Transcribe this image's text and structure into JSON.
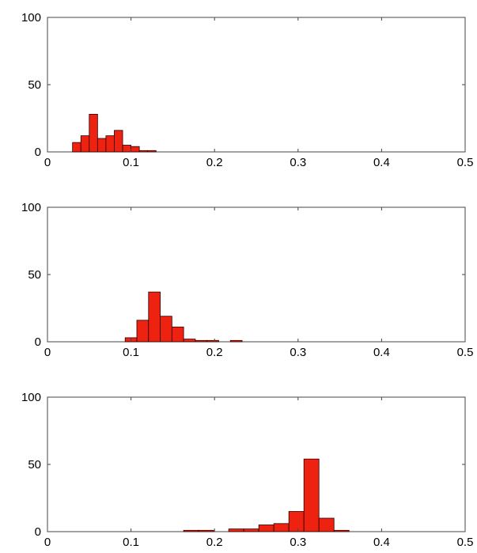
{
  "chart_data": [
    {
      "type": "bar",
      "title": "",
      "xlabel": "",
      "ylabel": "",
      "xlim": [
        0,
        0.5
      ],
      "ylim": [
        0,
        100
      ],
      "x_ticks": [
        "0",
        "0.1",
        "0.2",
        "0.3",
        "0.4",
        "0.5"
      ],
      "y_ticks": [
        "0",
        "50",
        "100"
      ],
      "grid": false,
      "bar_color": "#ee2211",
      "bin_width": 0.01,
      "x": [
        0.035,
        0.045,
        0.055,
        0.065,
        0.075,
        0.085,
        0.095,
        0.105,
        0.115,
        0.125
      ],
      "values": [
        7,
        12,
        28,
        10,
        12,
        16,
        5,
        4,
        1,
        1
      ]
    },
    {
      "type": "bar",
      "title": "",
      "xlabel": "",
      "ylabel": "",
      "xlim": [
        0,
        0.5
      ],
      "ylim": [
        0,
        100
      ],
      "x_ticks": [
        "0",
        "0.1",
        "0.2",
        "0.3",
        "0.4",
        "0.5"
      ],
      "y_ticks": [
        "0",
        "50",
        "100"
      ],
      "grid": false,
      "bar_color": "#ee2211",
      "bin_width": 0.014,
      "x": [
        0.1,
        0.114,
        0.128,
        0.142,
        0.156,
        0.17,
        0.184,
        0.198,
        0.226
      ],
      "values": [
        3,
        16,
        37,
        19,
        11,
        2,
        1,
        1,
        1
      ]
    },
    {
      "type": "bar",
      "title": "",
      "xlabel": "",
      "ylabel": "",
      "xlim": [
        0,
        0.5
      ],
      "ylim": [
        0,
        100
      ],
      "x_ticks": [
        "0",
        "0.1",
        "0.2",
        "0.3",
        "0.4",
        "0.5"
      ],
      "y_ticks": [
        "0",
        "50",
        "100"
      ],
      "grid": false,
      "bar_color": "#ee2211",
      "bin_width": 0.018,
      "x": [
        0.172,
        0.19,
        0.226,
        0.244,
        0.262,
        0.28,
        0.298,
        0.316,
        0.334,
        0.352
      ],
      "values": [
        1,
        1,
        2,
        2,
        5,
        6,
        15,
        54,
        10,
        1
      ]
    }
  ]
}
